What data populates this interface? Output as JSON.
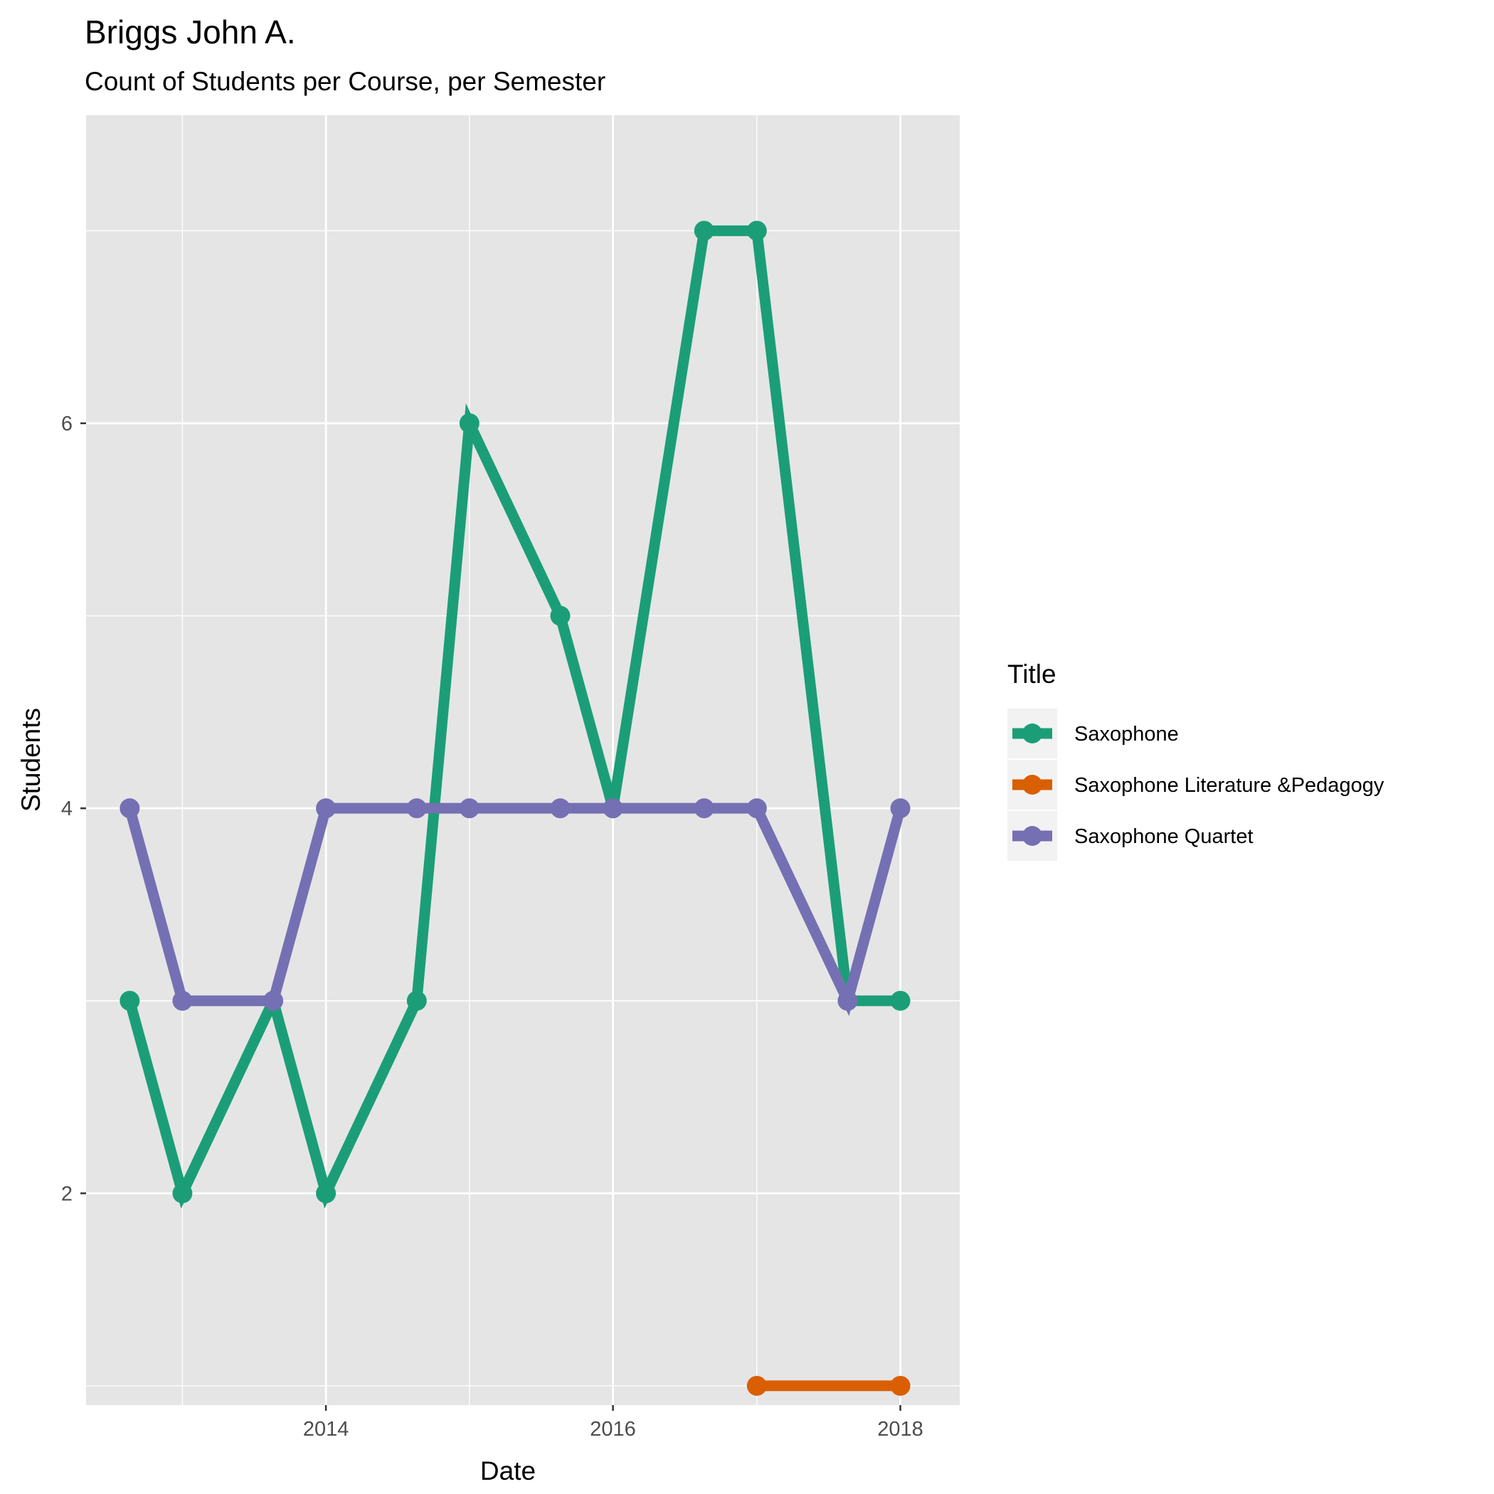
{
  "chart_data": {
    "type": "line",
    "title": "Briggs John A.",
    "subtitle": "Count of Students per Course, per Semester",
    "xlabel": "Date",
    "ylabel": "Students",
    "xlim": [
      "2012-05-01",
      "2018-06-01"
    ],
    "ylim": [
      0.9,
      7.6
    ],
    "x_ticks": [
      {
        "value": "2014-01-01",
        "label": "2014"
      },
      {
        "value": "2016-01-01",
        "label": "2016"
      },
      {
        "value": "2018-01-01",
        "label": "2018"
      }
    ],
    "x_minor_gridlines": [
      "2013-01-01",
      "2015-01-01",
      "2017-01-01"
    ],
    "y_ticks": [
      {
        "value": 2,
        "label": "2"
      },
      {
        "value": 4,
        "label": "4"
      },
      {
        "value": 6,
        "label": "6"
      }
    ],
    "y_minor_gridlines": [
      1,
      3,
      5,
      7
    ],
    "grid": true,
    "legend": {
      "title": "Title",
      "position": "right"
    },
    "series": [
      {
        "name": "Saxophone",
        "color": "#1b9e77",
        "points": [
          {
            "x": "2012-08-20",
            "y": 3
          },
          {
            "x": "2013-01-01",
            "y": 2
          },
          {
            "x": "2013-08-20",
            "y": 3
          },
          {
            "x": "2014-01-01",
            "y": 2
          },
          {
            "x": "2014-08-20",
            "y": 3
          },
          {
            "x": "2015-01-01",
            "y": 6
          },
          {
            "x": "2015-08-20",
            "y": 5
          },
          {
            "x": "2016-01-01",
            "y": 4
          },
          {
            "x": "2016-08-20",
            "y": 7
          },
          {
            "x": "2017-01-01",
            "y": 7
          },
          {
            "x": "2017-08-20",
            "y": 3
          },
          {
            "x": "2018-01-01",
            "y": 3
          }
        ]
      },
      {
        "name": "Saxophone Literature &Pedagogy",
        "color": "#d95f02",
        "points": [
          {
            "x": "2017-01-01",
            "y": 1
          },
          {
            "x": "2018-01-01",
            "y": 1
          }
        ]
      },
      {
        "name": "Saxophone Quartet",
        "color": "#7570b3",
        "points": [
          {
            "x": "2012-08-20",
            "y": 4
          },
          {
            "x": "2013-01-01",
            "y": 3
          },
          {
            "x": "2013-08-20",
            "y": 3
          },
          {
            "x": "2014-01-01",
            "y": 4
          },
          {
            "x": "2014-08-20",
            "y": 4
          },
          {
            "x": "2015-01-01",
            "y": 4
          },
          {
            "x": "2015-08-20",
            "y": 4
          },
          {
            "x": "2016-01-01",
            "y": 4
          },
          {
            "x": "2016-08-20",
            "y": 4
          },
          {
            "x": "2017-01-01",
            "y": 4
          },
          {
            "x": "2017-08-20",
            "y": 3
          },
          {
            "x": "2018-01-01",
            "y": 4
          }
        ]
      }
    ]
  }
}
